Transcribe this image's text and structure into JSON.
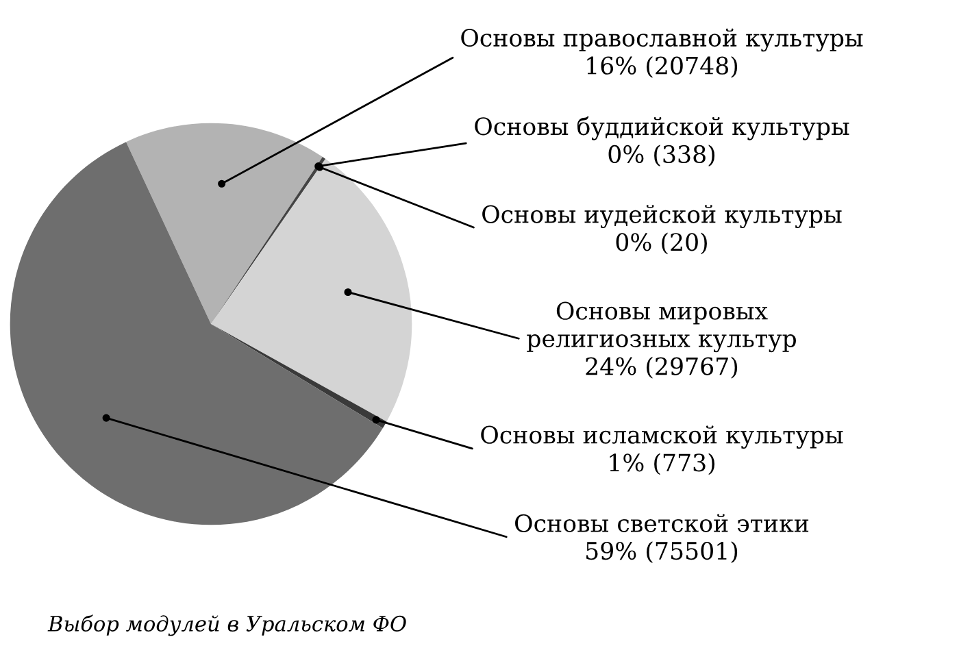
{
  "chart_data": {
    "type": "pie",
    "categories": [
      "Основы православной культуры",
      "Основы буддийской культуры",
      "Основы иудейской культуры",
      "Основы мировых\nрелигиозных культур",
      "Основы исламской культуры",
      "Основы светской этики"
    ],
    "values": [
      20748,
      338,
      20,
      29767,
      773,
      75501
    ],
    "value_labels": [
      "16% (20748)",
      "0% (338)",
      "0% (20)",
      "24% (29767)",
      "1% (773)",
      "59% (75501)"
    ],
    "colors": [
      "#b3b3b3",
      "#444444",
      "#444444",
      "#d4d4d4",
      "#3a3a3a",
      "#6e6e6e"
    ],
    "annotations": [
      "Выбор модулей в Уральском ФО"
    ]
  }
}
